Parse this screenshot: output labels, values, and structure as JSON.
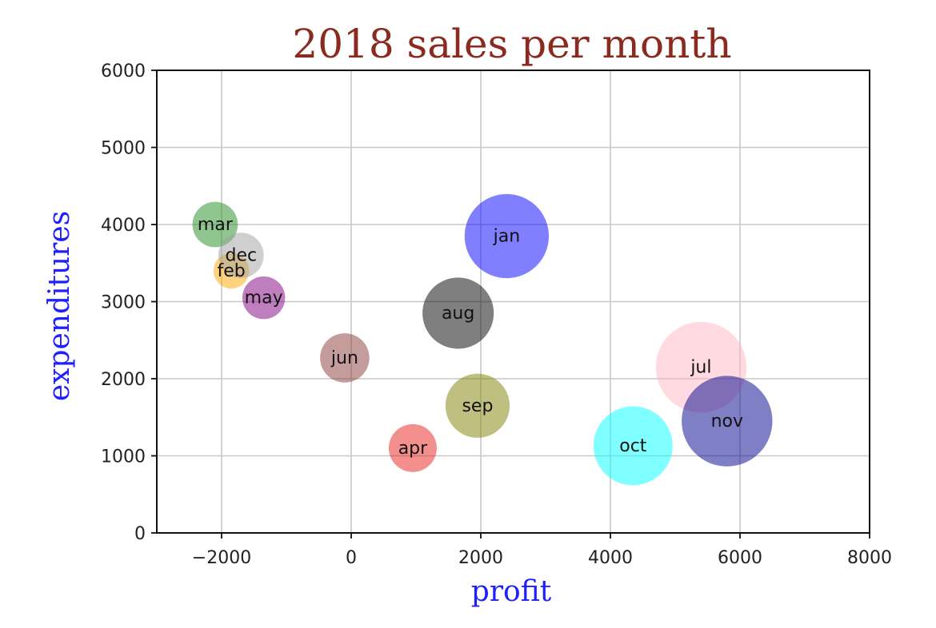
{
  "chart_data": {
    "type": "scatter",
    "title": "2018 sales per month",
    "xlabel": "profit",
    "ylabel": "expenditures",
    "xlim": [
      -3000,
      8000
    ],
    "ylim": [
      0,
      6000
    ],
    "xticks": [
      -2000,
      0,
      2000,
      4000,
      6000,
      8000
    ],
    "xtick_labels": [
      "−2000",
      "0",
      "2000",
      "4000",
      "6000",
      "8000"
    ],
    "yticks": [
      0,
      1000,
      2000,
      3000,
      4000,
      5000,
      6000
    ],
    "ytick_labels": [
      "0",
      "1000",
      "2000",
      "3000",
      "4000",
      "5000",
      "6000"
    ],
    "grid": true,
    "title_color": "#8b2a1f",
    "axis_label_color": "#1f1fff",
    "points": [
      {
        "label": "jan",
        "x": 2400,
        "y": 3850,
        "size": 1300,
        "color": "#0000ff"
      },
      {
        "label": "feb",
        "x": -1850,
        "y": 3400,
        "size": 550,
        "color": "#ffa500"
      },
      {
        "label": "mar",
        "x": -2100,
        "y": 4000,
        "size": 700,
        "color": "#228b22"
      },
      {
        "label": "apr",
        "x": 950,
        "y": 1100,
        "size": 740,
        "color": "#e8221d"
      },
      {
        "label": "may",
        "x": -1350,
        "y": 3050,
        "size": 660,
        "color": "#800080"
      },
      {
        "label": "jun",
        "x": -100,
        "y": 2270,
        "size": 760,
        "color": "#8b3a3a"
      },
      {
        "label": "jul",
        "x": 5400,
        "y": 2150,
        "size": 1400,
        "color": "#ffb6c1"
      },
      {
        "label": "aug",
        "x": 1650,
        "y": 2850,
        "size": 1100,
        "color": "#000000"
      },
      {
        "label": "sep",
        "x": 1950,
        "y": 1650,
        "size": 990,
        "color": "#808000"
      },
      {
        "label": "oct",
        "x": 4350,
        "y": 1130,
        "size": 1220,
        "color": "#00ffff"
      },
      {
        "label": "nov",
        "x": 5800,
        "y": 1450,
        "size": 1400,
        "color": "#00008b"
      },
      {
        "label": "dec",
        "x": -1700,
        "y": 3600,
        "size": 700,
        "color": "#a0a0a0"
      }
    ]
  }
}
